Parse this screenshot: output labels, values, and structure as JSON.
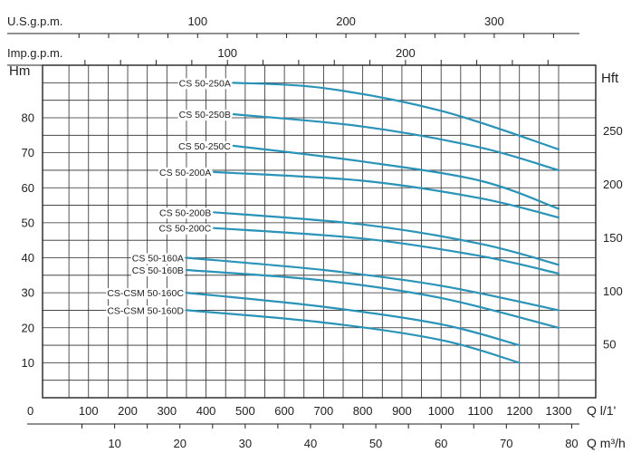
{
  "chart_data": {
    "type": "line",
    "y_left_label": "Hm",
    "y_right_label": "Hft",
    "top_axis_1_label": "U.S.g.p.m.",
    "top_axis_2_label": "Imp.g.p.m.",
    "bottom_axis_1_label": "Q l/1'",
    "bottom_axis_2_label": "Q m³/h",
    "zero_label": "0",
    "xlim": [
      0,
      1350
    ],
    "ylim": [
      0,
      95
    ],
    "grid": true,
    "y_left_ticks": [
      "10",
      "20",
      "30",
      "40",
      "50",
      "60",
      "70",
      "80"
    ],
    "y_right_ticks": [
      "50",
      "100",
      "150",
      "200",
      "250"
    ],
    "x_ticks_lmin": [
      "100",
      "200",
      "300",
      "400",
      "500",
      "600",
      "700",
      "800",
      "900",
      "1000",
      "1100",
      "1200",
      "1300"
    ],
    "x_ticks_m3h": [
      "10",
      "20",
      "30",
      "40",
      "50",
      "60",
      "70",
      "80"
    ],
    "x_ticks_usgpm": [
      "100",
      "200",
      "300"
    ],
    "x_ticks_impgpm": [
      "100",
      "200"
    ],
    "curve_color": "#2a93b8",
    "series": [
      {
        "name": "CS 50-250A",
        "x": [
          470,
          700,
          1000,
          1300
        ],
        "y": [
          90,
          88.5,
          82,
          71
        ]
      },
      {
        "name": "CS 50-250B",
        "x": [
          470,
          800,
          1100,
          1300
        ],
        "y": [
          81,
          77.5,
          71.5,
          65
        ]
      },
      {
        "name": "CS 50-250C",
        "x": [
          470,
          800,
          1100,
          1300
        ],
        "y": [
          72,
          67.5,
          62,
          54
        ]
      },
      {
        "name": "CS 50-200A",
        "x": [
          420,
          800,
          1100,
          1300
        ],
        "y": [
          64.5,
          62,
          57,
          51.5
        ]
      },
      {
        "name": "CS 50-200B",
        "x": [
          420,
          800,
          1100,
          1300
        ],
        "y": [
          53,
          49.5,
          44,
          38
        ]
      },
      {
        "name": "CS 50-200C",
        "x": [
          420,
          800,
          1100,
          1300
        ],
        "y": [
          48.5,
          45.5,
          40.5,
          35.5
        ]
      },
      {
        "name": "CS 50-160A",
        "x": [
          350,
          700,
          1000,
          1300
        ],
        "y": [
          40,
          36.5,
          32,
          25
        ]
      },
      {
        "name": "CS 50-160B",
        "x": [
          350,
          700,
          1000,
          1300
        ],
        "y": [
          36.5,
          33.5,
          28.5,
          20
        ]
      },
      {
        "name": "CS-CSM 50-160C",
        "x": [
          350,
          700,
          1000,
          1200
        ],
        "y": [
          30,
          26,
          21,
          15
        ]
      },
      {
        "name": "CS-CSM 50-160D",
        "x": [
          350,
          700,
          1000,
          1200
        ],
        "y": [
          25,
          21.5,
          16.5,
          10
        ]
      }
    ]
  }
}
